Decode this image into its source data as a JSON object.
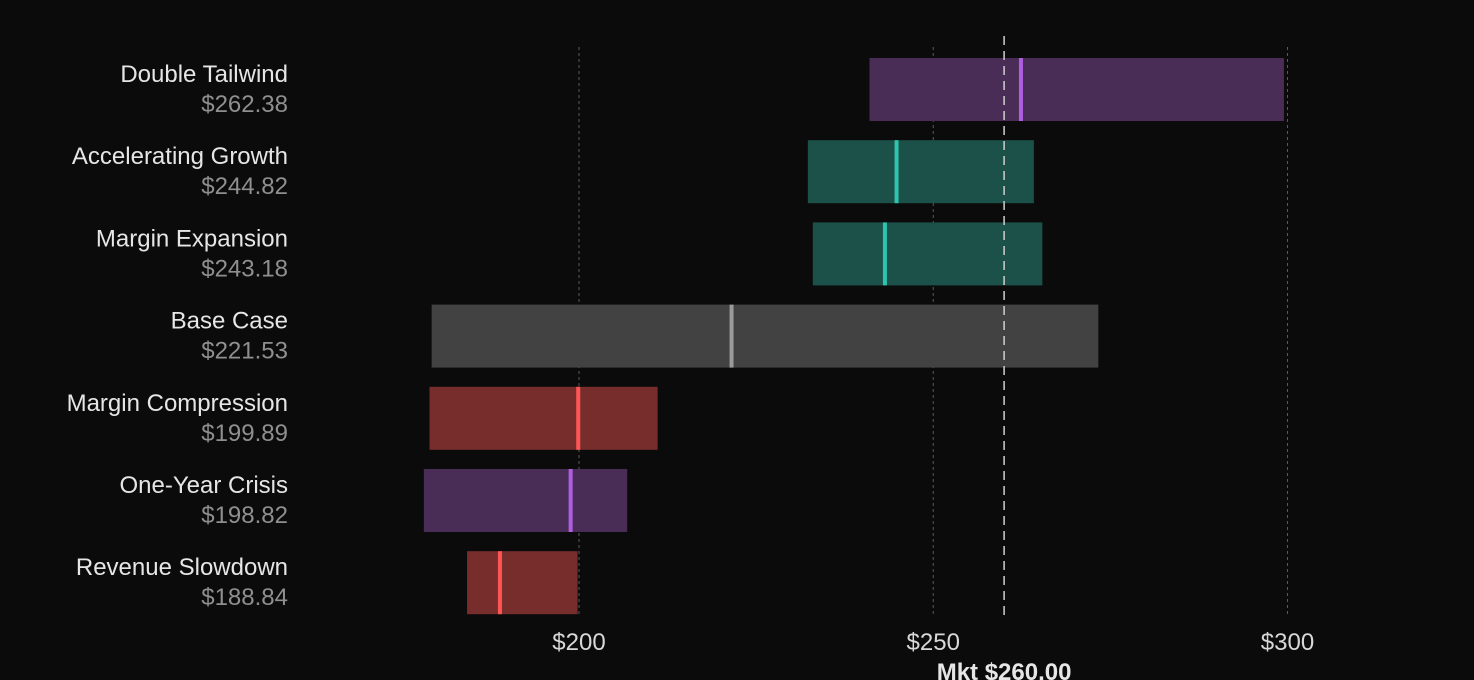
{
  "chart_data": {
    "type": "bar",
    "orientation": "horizontal-range",
    "xlim": [
      130,
      325
    ],
    "ticks": [
      {
        "value": 200,
        "label": "$200"
      },
      {
        "value": 250,
        "label": "$250"
      },
      {
        "value": 300,
        "label": "$300"
      }
    ],
    "grid": true,
    "market": {
      "value": 260,
      "label": "Mkt $260.00"
    },
    "scenarios": [
      {
        "name": "Double Tailwind",
        "value_label": "$262.38",
        "value": 262.38,
        "low": 241.0,
        "high": 299.5,
        "fill": "#4a2d57",
        "marker": "#b05ee0"
      },
      {
        "name": "Accelerating Growth",
        "value_label": "$244.82",
        "value": 244.82,
        "low": 232.3,
        "high": 264.2,
        "fill": "#1b5149",
        "marker": "#2ec4ad"
      },
      {
        "name": "Margin Expansion",
        "value_label": "$243.18",
        "value": 243.18,
        "low": 233.0,
        "high": 265.4,
        "fill": "#1b5149",
        "marker": "#2ec4ad"
      },
      {
        "name": "Base Case",
        "value_label": "$221.53",
        "value": 221.53,
        "low": 179.2,
        "high": 273.3,
        "fill": "#424242",
        "marker": "#9a9a9a"
      },
      {
        "name": "Margin Compression",
        "value_label": "$199.89",
        "value": 199.89,
        "low": 178.9,
        "high": 211.1,
        "fill": "#782d2d",
        "marker": "#ff5555"
      },
      {
        "name": "One-Year Crisis",
        "value_label": "$198.82",
        "value": 198.82,
        "low": 178.1,
        "high": 206.8,
        "fill": "#4a2d57",
        "marker": "#b05ee0"
      },
      {
        "name": "Revenue Slowdown",
        "value_label": "$188.84",
        "value": 188.84,
        "low": 184.2,
        "high": 199.8,
        "fill": "#782d2d",
        "marker": "#ff5555"
      }
    ]
  }
}
